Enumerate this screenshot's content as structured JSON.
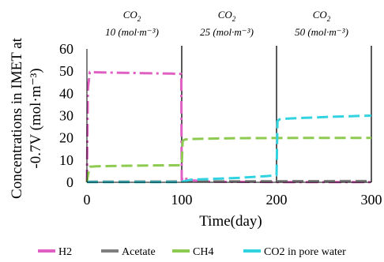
{
  "chart_data": {
    "type": "line",
    "xlabel": "Time(day)",
    "ylabel_lines": [
      "Concentrations in IMET at",
      "-0.7V (mol·m⁻³)"
    ],
    "xlim": [
      0,
      300
    ],
    "ylim": [
      0,
      60
    ],
    "xticks": [
      "0",
      "100",
      "200",
      "300"
    ],
    "yticks": [
      "0",
      "10",
      "20",
      "30",
      "40",
      "50",
      "60"
    ],
    "phase_boundaries": [
      100,
      200,
      300
    ],
    "annotations": [
      {
        "line1": "CO",
        "sub": "2",
        "line2": "10 (mol·m⁻³)",
        "x_center": 50
      },
      {
        "line1": "CO",
        "sub": "2",
        "line2": "25 (mol·m⁻³)",
        "x_center": 150
      },
      {
        "line1": "CO",
        "sub": "2",
        "line2": "50 (mol·m⁻³)",
        "x_center": 250
      }
    ],
    "legend_position": "bottom",
    "series": [
      {
        "name": "H2",
        "color": "#e05fc3",
        "dash": "16,5,3,5",
        "x": [
          0,
          1,
          3,
          10,
          30,
          60,
          90,
          99.5,
          100,
          101,
          103,
          110,
          130,
          160,
          190,
          199.5,
          200,
          201,
          210,
          250,
          300
        ],
        "y": [
          0,
          42,
          49.6,
          49.5,
          49.3,
          49.1,
          48.9,
          48.7,
          1,
          2.4,
          1.8,
          0.9,
          0.3,
          0.2,
          0.15,
          0.15,
          0.1,
          0.1,
          0.1,
          0.1,
          0.1
        ]
      },
      {
        "name": "Acetate",
        "color": "#7f7f7f",
        "dash": "14,6",
        "x": [
          0,
          100,
          200,
          300
        ],
        "y": [
          0.3,
          0.4,
          0.5,
          0.6
        ]
      },
      {
        "name": "CH4",
        "color": "#8ccb4f",
        "dash": "14,6",
        "x": [
          0,
          1,
          3,
          10,
          50,
          99.5,
          100,
          101,
          103,
          110,
          150,
          199.5,
          200,
          250,
          300
        ],
        "y": [
          0,
          3,
          7,
          7.2,
          7.5,
          7.7,
          7.7,
          18.5,
          19.2,
          19.5,
          19.8,
          19.9,
          19.9,
          20,
          20
        ]
      },
      {
        "name": "CO2 in pore water",
        "color": "#32d3e0",
        "dash": "14,6",
        "x": [
          0,
          50,
          99.5,
          100,
          110,
          130,
          160,
          190,
          199.5,
          200,
          201,
          203,
          210,
          230,
          260,
          300
        ],
        "y": [
          0.1,
          0.1,
          0.1,
          0.2,
          1.2,
          1.5,
          2,
          2.8,
          3.2,
          3.2,
          27.5,
          28.3,
          28.6,
          29,
          29.5,
          30
        ]
      }
    ]
  }
}
